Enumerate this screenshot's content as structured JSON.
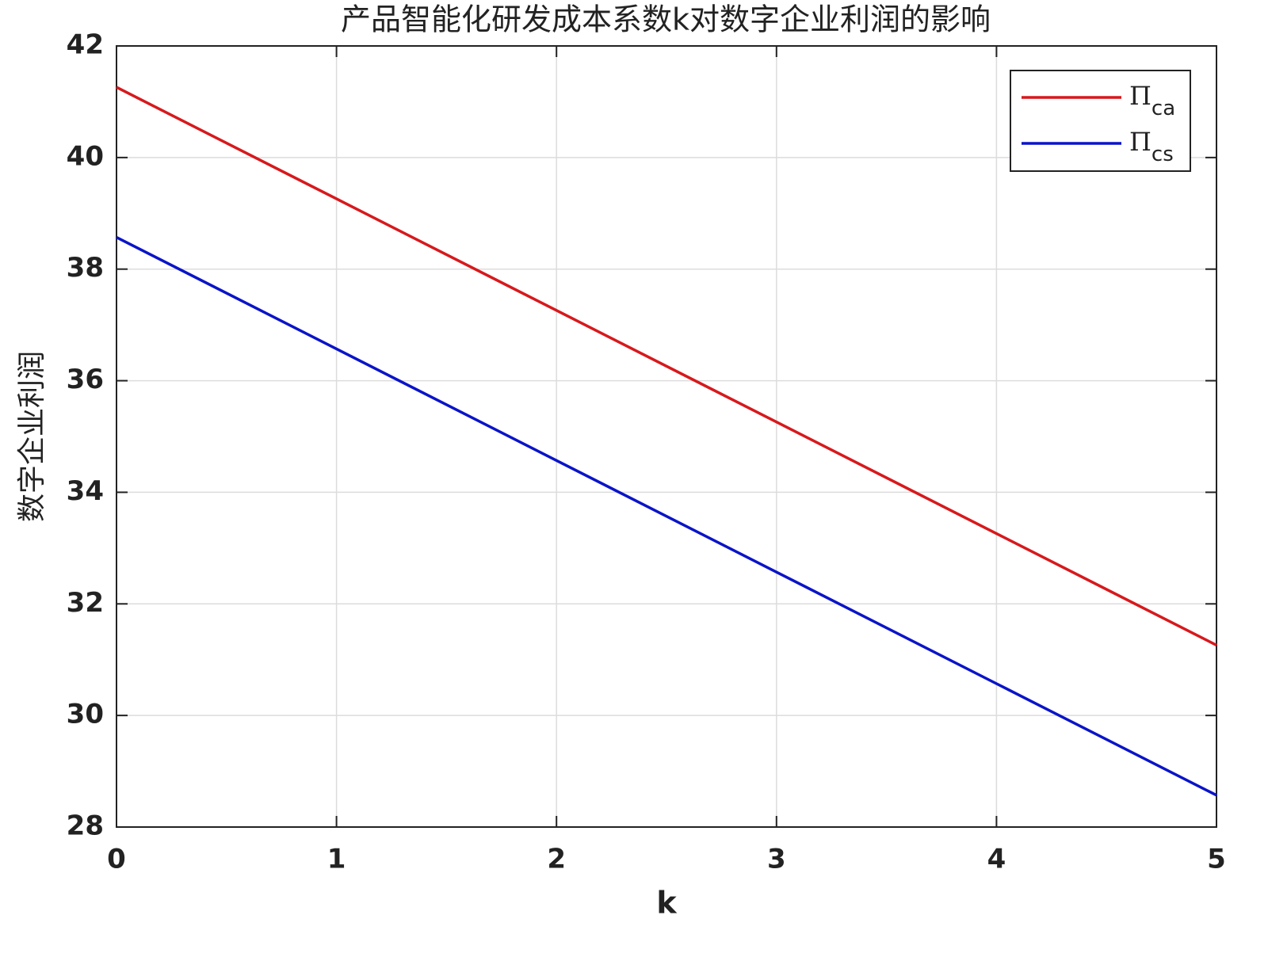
{
  "chart_data": {
    "type": "line",
    "title": "产品智能化研发成本系数k对数字企业利润的影响",
    "x_label": "k",
    "y_label": "数字企业利润",
    "x": [
      0,
      1,
      2,
      3,
      4,
      5
    ],
    "series": [
      {
        "name": "Πca",
        "color": "#d7191c",
        "values": [
          41.26,
          39.26,
          37.26,
          35.26,
          33.26,
          31.26
        ]
      },
      {
        "name": "Πcs",
        "color": "#0a14c8",
        "values": [
          38.57,
          36.57,
          34.57,
          32.57,
          30.57,
          28.57
        ]
      }
    ],
    "xlim": [
      0,
      5
    ],
    "xticks": [
      0,
      1,
      2,
      3,
      4,
      5
    ],
    "ylim": [
      28,
      42
    ],
    "yticks": [
      28,
      30,
      32,
      34,
      36,
      38,
      40,
      42
    ],
    "grid": true,
    "legend": "top-right"
  }
}
